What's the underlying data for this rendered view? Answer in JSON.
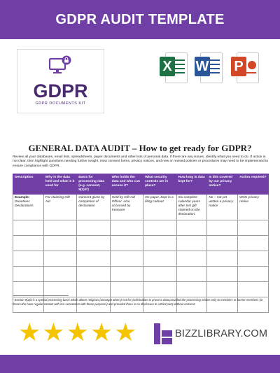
{
  "header": {
    "title": "GDPR AUDIT TEMPLATE"
  },
  "logo": {
    "name": "GDPR",
    "subtitle": "GDPR DOCUMENTS KIT"
  },
  "apps": [
    {
      "name": "excel-icon",
      "letter": "X",
      "color": "#1e7145"
    },
    {
      "name": "word-icon",
      "letter": "W",
      "color": "#2b579a"
    },
    {
      "name": "powerpoint-icon",
      "letter": "P",
      "color": "#d24726"
    }
  ],
  "document": {
    "title": "GENERAL DATA AUDIT – How to get ready for GDPR?",
    "intro": "Review all your databases, email lists, spreadsheets, paper documents and other lists of personal data. If there are any issues, identify what you need to do. If action is not clear, then highlight questions needing further insight. Now consent forms, privacy notices, and new or revised policies or procedures may need to be implemented to ensure compliance with GDPR.",
    "table": {
      "headers": [
        "Description",
        "Why is the data held and what is it used for",
        "Basis for processing data (e.g. consent, 9(2)d¹)",
        "Who holds the data and who can access it?",
        "What security controls are in place?",
        "How long is data kept for?",
        "Is this covered by our privacy notice?",
        "Action required?"
      ],
      "example": [
        "Example: Donations Declarations",
        "For claiming Gift Aid",
        "Consent given by completion of declaration",
        "Held by Gift Aid Officer. Also accessed by treasurer",
        "On paper, kept in a filing cabinet",
        "Six complete calendar years after last gift claimed on the declaration.",
        "No – not yet written a privacy notice",
        "Write privacy notice"
      ],
      "example_label": "Example:",
      "example_desc": "Donations Declarations",
      "empty_rows": 6
    },
    "footnote": "¹ Section 9(2)d is a special processing basis which allows religious (amongst others) not-for-profit bodies to process data provided the processing relates only to members or former members (or those who have regular contact with it in connection with those purposes) and provided there is no disclosure to a third party without consent."
  },
  "rating": {
    "stars": 5,
    "color": "#f5c400"
  },
  "brand": {
    "name": "BIZZLIBRARY.COM"
  },
  "colors": {
    "accent": "#6f3fa6"
  }
}
